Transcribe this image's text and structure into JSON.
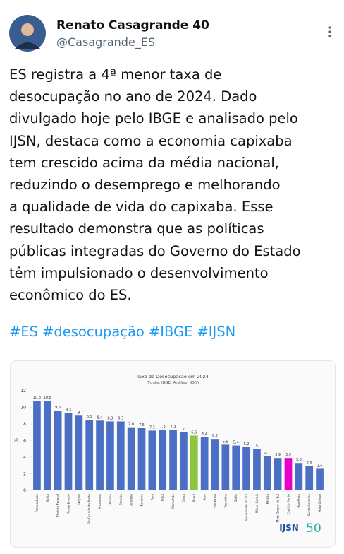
{
  "author": {
    "name": "Renato Casagrande 40",
    "handle": "@Casagrande_ES"
  },
  "text_lines": [
    "ES registra a 4ª menor taxa de",
    "desocupação no ano de 2024. Dado",
    "divulgado hoje pelo IBGE e analisado pelo",
    "IJSN, destaca como a economia capixaba",
    "tem crescido acima da média nacional,",
    "reduzindo o desemprego e melhorando",
    "a qualidade de vida do capixaba. Esse",
    "resultado demonstra que as políticas",
    "públicas integradas do Governo do Estado",
    "têm impulsionado o desenvolvimento",
    "econômico do ES."
  ],
  "hashtags": [
    "#ES",
    "#desocupação",
    "#IBGE",
    "#IJSN"
  ],
  "chart_data": {
    "type": "bar",
    "title": "Taxa de Desocupação em 2024",
    "subtitle": "(Fonte: IBGE; Análise: IJSN)",
    "y_label": "%",
    "categories": [
      "Pernambuco",
      "Bahia",
      "Distrito Federal",
      "Rio de Janeiro",
      "Sergipe",
      "Rio Grande do Norte",
      "Amazonas",
      "Amapá",
      "Paraíba",
      "Alagoas",
      "Roraima",
      "Pará",
      "Piauí",
      "Maranhão",
      "Ceará",
      "Brasil",
      "Acre",
      "São Paulo",
      "Tocantins",
      "Goiás",
      "Rio Grande do Sul",
      "Minas Gerais",
      "Paraná",
      "Mato Grosso do Sul",
      "Espírito Santo",
      "Rondônia",
      "Santa Catarina",
      "Mato Grosso"
    ],
    "values": [
      10.8,
      10.8,
      9.6,
      9.3,
      9,
      8.5,
      8.4,
      8.3,
      8.3,
      7.6,
      7.5,
      7.2,
      7.3,
      7.3,
      7,
      6.6,
      6.4,
      6.2,
      5.5,
      5.4,
      5.2,
      5,
      4.1,
      3.9,
      3.9,
      3.3,
      2.9,
      2.6
    ],
    "value_labels": [
      "10,8",
      "10,8",
      "9,6",
      "9,3",
      "9",
      "8,5",
      "8,4",
      "8,3",
      "8,3",
      "7,6",
      "7,5",
      "7,2",
      "7,3",
      "7,3",
      "7",
      "6,6",
      "6,4",
      "6,2",
      "5,5",
      "5,4",
      "5,2",
      "5",
      "4,1",
      "3,9",
      "3,9",
      "3,3",
      "2,9",
      "2,6"
    ],
    "colors": [
      "#4a6fc4",
      "#4a6fc4",
      "#4a6fc4",
      "#4a6fc4",
      "#4a6fc4",
      "#4a6fc4",
      "#4a6fc4",
      "#4a6fc4",
      "#4a6fc4",
      "#4a6fc4",
      "#4a6fc4",
      "#4a6fc4",
      "#4a6fc4",
      "#4a6fc4",
      "#4a6fc4",
      "#8cc63f",
      "#4a6fc4",
      "#4a6fc4",
      "#4a6fc4",
      "#4a6fc4",
      "#4a6fc4",
      "#4a6fc4",
      "#4a6fc4",
      "#4a6fc4",
      "#e600c8",
      "#4a6fc4",
      "#4a6fc4",
      "#4a6fc4"
    ],
    "ylim": [
      0,
      12
    ],
    "yticks": [
      0,
      2,
      4,
      6,
      8,
      10,
      12
    ],
    "grid": false,
    "logo_text": "IJSN",
    "anniversary_logo": "50"
  }
}
